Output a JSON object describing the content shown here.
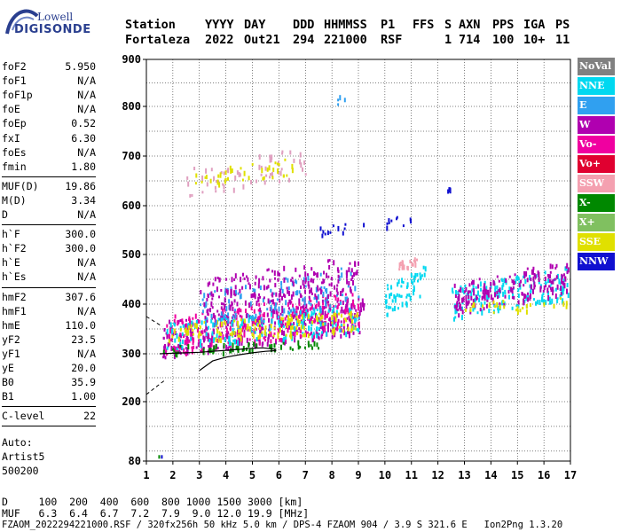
{
  "logo": {
    "brand_top": "Lowell",
    "brand_bottom": "DIGISONDE"
  },
  "header": {
    "row1": [
      "Station",
      "YYYY",
      "DAY",
      "DDD",
      "HHMMSS",
      "P1",
      "FFS",
      "S",
      "AXN",
      "PPS",
      "IGA",
      "PS"
    ],
    "row2": [
      "Fortaleza",
      "2022",
      "Out21",
      "294",
      "221000",
      "RSF",
      "",
      "1",
      "714",
      "100",
      "10+",
      "11"
    ]
  },
  "side_params": {
    "group1": [
      {
        "k": "foF2",
        "v": "5.950"
      },
      {
        "k": "foF1",
        "v": "N/A"
      },
      {
        "k": "foF1p",
        "v": "N/A"
      },
      {
        "k": "foE",
        "v": "N/A"
      },
      {
        "k": "foEp",
        "v": "0.52"
      },
      {
        "k": "fxI",
        "v": "6.30"
      },
      {
        "k": "foEs",
        "v": "N/A"
      },
      {
        "k": "fmin",
        "v": "1.80"
      }
    ],
    "group2": [
      {
        "k": "MUF(D)",
        "v": "19.86"
      },
      {
        "k": "M(D)",
        "v": "3.34"
      },
      {
        "k": "D",
        "v": "N/A"
      }
    ],
    "group3": [
      {
        "k": "h`F",
        "v": "300.0"
      },
      {
        "k": "h`F2",
        "v": "300.0"
      },
      {
        "k": "h`E",
        "v": "N/A"
      },
      {
        "k": "h`Es",
        "v": "N/A"
      }
    ],
    "group4": [
      {
        "k": "hmF2",
        "v": "307.6"
      },
      {
        "k": "hmF1",
        "v": "N/A"
      },
      {
        "k": "hmE",
        "v": "110.0"
      },
      {
        "k": "yF2",
        "v": "23.5"
      },
      {
        "k": "yF1",
        "v": "N/A"
      },
      {
        "k": "yE",
        "v": "20.0"
      },
      {
        "k": "B0",
        "v": "35.9"
      },
      {
        "k": "B1",
        "v": "1.00"
      }
    ],
    "group5": [
      {
        "k": "C-level",
        "v": "22"
      }
    ],
    "auto": [
      "Auto:",
      "Artist5",
      "500200"
    ]
  },
  "legend": [
    {
      "label": "NoVal",
      "color": "#808080"
    },
    {
      "label": "NNE",
      "color": "#00d8f0"
    },
    {
      "label": "E",
      "color": "#30a0f0"
    },
    {
      "label": "W",
      "color": "#b000b0"
    },
    {
      "label": "Vo-",
      "color": "#f000a0"
    },
    {
      "label": "Vo+",
      "color": "#e00030"
    },
    {
      "label": "SSW",
      "color": "#f4a0b0"
    },
    {
      "label": "X-",
      "color": "#008800"
    },
    {
      "label": "X+",
      "color": "#80c060"
    },
    {
      "label": "SSE",
      "color": "#e0e000"
    },
    {
      "label": "NNW",
      "color": "#1010d0"
    }
  ],
  "chart_data": {
    "type": "scatter",
    "title": "",
    "xlabel": "",
    "ylabel": "",
    "xlim": [
      1,
      17
    ],
    "ylim": [
      80,
      900
    ],
    "x_ticks": [
      "1",
      "2",
      "3",
      "4",
      "5",
      "6",
      "7",
      "8",
      "9",
      "10",
      "11",
      "12",
      "13",
      "14",
      "15",
      "16",
      "17"
    ],
    "y_ticks": [
      "80",
      "200",
      "300",
      "400",
      "500",
      "600",
      "700",
      "800",
      "900"
    ],
    "grid": true,
    "traces": [
      {
        "name": "profile",
        "points": [
          [
            1.5,
            300
          ],
          [
            2.0,
            301
          ],
          [
            2.5,
            302
          ],
          [
            3.0,
            303
          ],
          [
            3.5,
            305
          ],
          [
            4.0,
            307
          ],
          [
            4.5,
            309
          ],
          [
            5.0,
            311
          ],
          [
            5.4,
            312
          ],
          [
            5.9,
            309
          ]
        ]
      },
      {
        "name": "profile-lower",
        "points": [
          [
            3.0,
            265
          ],
          [
            3.5,
            285
          ],
          [
            4.0,
            293
          ],
          [
            4.5,
            298
          ],
          [
            5.0,
            302
          ],
          [
            5.5,
            305
          ],
          [
            5.8,
            306
          ],
          [
            5.9,
            306
          ]
        ]
      }
    ],
    "echo_clusters": [
      {
        "color": "#b000b0",
        "x": [
          1.6,
          9.2
        ],
        "y": [
          295,
          420
        ],
        "n": 420
      },
      {
        "color": "#f000a0",
        "x": [
          1.7,
          9.0
        ],
        "y": [
          300,
          430
        ],
        "n": 260
      },
      {
        "color": "#00d8f0",
        "x": [
          1.7,
          9.0
        ],
        "y": [
          310,
          400
        ],
        "n": 150
      },
      {
        "color": "#e0e000",
        "x": [
          1.8,
          9.0
        ],
        "y": [
          320,
          390
        ],
        "n": 140
      },
      {
        "color": "#30a0f0",
        "x": [
          3.0,
          9.0
        ],
        "y": [
          350,
          480
        ],
        "n": 120
      },
      {
        "color": "#b000b0",
        "x": [
          3.0,
          9.0
        ],
        "y": [
          380,
          500
        ],
        "n": 200
      },
      {
        "color": "#e0a0c0",
        "x": [
          2.5,
          7.0
        ],
        "y": [
          620,
          720
        ],
        "n": 60
      },
      {
        "color": "#e0e000",
        "x": [
          2.8,
          6.5
        ],
        "y": [
          640,
          700
        ],
        "n": 40
      },
      {
        "color": "#00d8f0",
        "x": [
          10.0,
          11.5
        ],
        "y": [
          380,
          480
        ],
        "n": 60
      },
      {
        "color": "#f4a0b0",
        "x": [
          10.5,
          11.2
        ],
        "y": [
          470,
          500
        ],
        "n": 20
      },
      {
        "color": "#00d8f0",
        "x": [
          12.5,
          16.9
        ],
        "y": [
          370,
          480
        ],
        "n": 160
      },
      {
        "color": "#b000b0",
        "x": [
          12.6,
          16.9
        ],
        "y": [
          380,
          490
        ],
        "n": 180
      },
      {
        "color": "#e0e000",
        "x": [
          13.0,
          16.9
        ],
        "y": [
          380,
          420
        ],
        "n": 30
      },
      {
        "color": "#1010d0",
        "x": [
          7.5,
          9.2
        ],
        "y": [
          540,
          570
        ],
        "n": 12
      },
      {
        "color": "#1010d0",
        "x": [
          10.0,
          11.2
        ],
        "y": [
          550,
          590
        ],
        "n": 10
      },
      {
        "color": "#1010d0",
        "x": [
          12.3,
          12.5
        ],
        "y": [
          630,
          640
        ],
        "n": 4
      },
      {
        "color": "#008800",
        "x": [
          1.6,
          7.5
        ],
        "y": [
          300,
          330
        ],
        "n": 60
      },
      {
        "color": "#30a0f0",
        "x": [
          8.0,
          8.5
        ],
        "y": [
          800,
          830
        ],
        "n": 4
      }
    ]
  },
  "footer": {
    "d_row": "D     100  200  400  600  800 1000 1500 3000 [km]",
    "muf_row": "MUF   6.3  6.4  6.7  7.2  7.9  9.0 12.0 19.9 [MHz]",
    "file_line": "FZAOM_2022294221000.RSF / 320fx256h 50 kHz 5.0 km / DPS-4 FZAOM 904 / 3.9 S 321.6 E   Ion2Png 1.3.20"
  }
}
